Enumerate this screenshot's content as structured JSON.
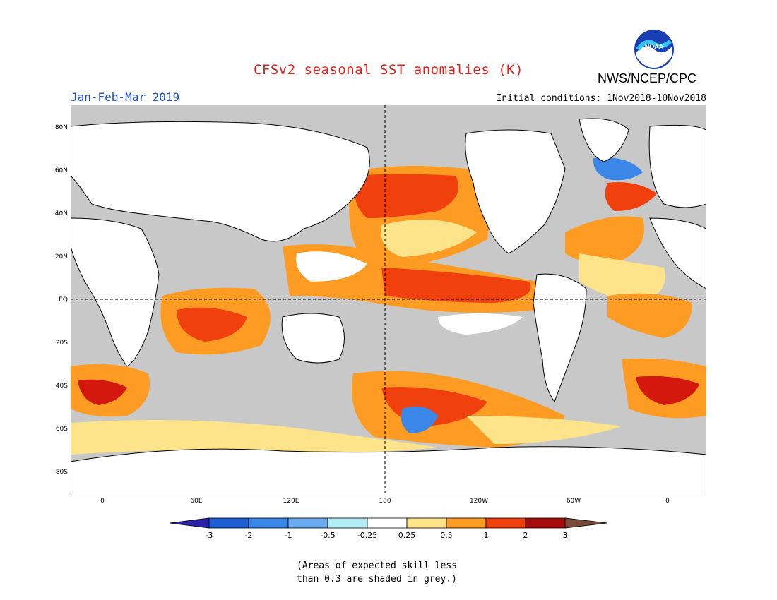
{
  "header": {
    "title": "CFSv2 seasonal SST anomalies (K)",
    "season": "Jan-Feb-Mar 2019",
    "initial_conditions": "Initial conditions: 1Nov2018-10Nov2018",
    "agency": "NWS/NCEP/CPC",
    "logo_text": "NOAA"
  },
  "map": {
    "lat_labels": [
      "80N",
      "60N",
      "40N",
      "20N",
      "EQ",
      "20S",
      "40S",
      "60S",
      "80S"
    ],
    "lat_values": [
      80,
      60,
      40,
      20,
      0,
      -20,
      -40,
      -60,
      -80
    ],
    "lon_labels": [
      "0",
      "60E",
      "120E",
      "180",
      "120W",
      "60W",
      "0"
    ],
    "lon_values": [
      0,
      60,
      120,
      180,
      240,
      300,
      360
    ],
    "colors": {
      "land": "#ffffff",
      "no_skill": "#c8c8c8",
      "coast": "#000000"
    }
  },
  "colorbar": {
    "labels": [
      "-3",
      "-2",
      "-1",
      "-0.5",
      "-0.25",
      "0.25",
      "0.5",
      "1",
      "2",
      "3"
    ],
    "colors": [
      "#2a22a8",
      "#1d5fd3",
      "#3b87e8",
      "#6aabf0",
      "#b0ecf2",
      "#ffffff",
      "#fde38a",
      "#fe9b22",
      "#f0400e",
      "#d4180e",
      "#a80d0d",
      "#7a4a3a"
    ]
  },
  "footnote": {
    "line1": "(Areas of expected skill less",
    "line2": "than 0.3 are shaded in grey.)"
  }
}
